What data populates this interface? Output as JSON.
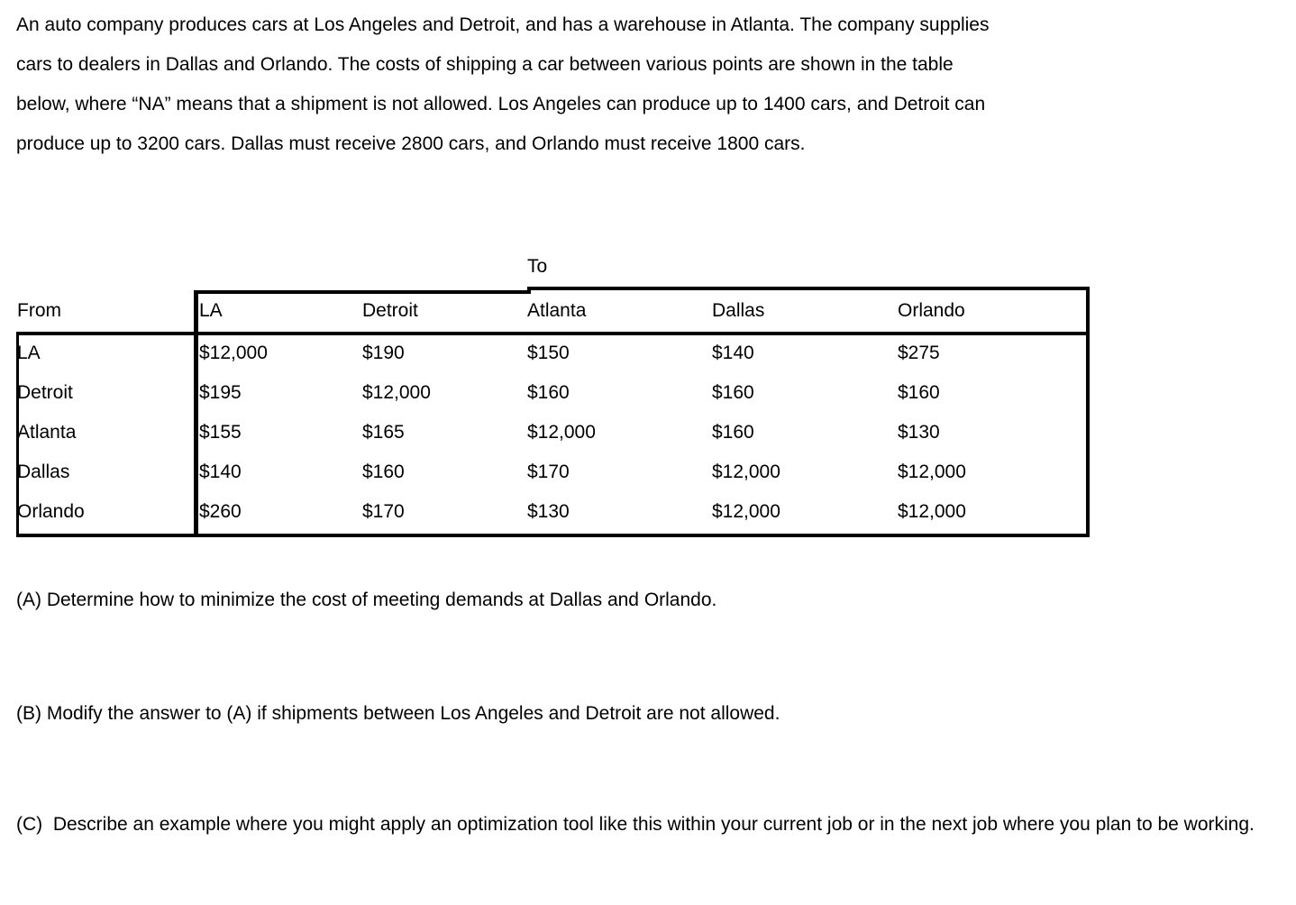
{
  "intro": {
    "lines": [
      "An auto company produces cars at Los Angeles and Detroit, and has a warehouse in Atlanta. The company supplies",
      "cars to dealers in Dallas and Orlando. The costs of shipping a car between various points are shown in the table",
      "below, where “NA” means that a shipment is not allowed. Los Angeles can produce up to 1400 cars, and Detroit can",
      "produce up to 3200 cars. Dallas must receive 2800 cars, and Orlando must receive 1800 cars."
    ]
  },
  "table": {
    "to_label": "To",
    "from_label": "From",
    "columns": [
      "LA",
      "Detroit",
      "Atlanta",
      "Dallas",
      "Orlando"
    ],
    "rows": [
      {
        "from": "LA",
        "cells": [
          "$12,000",
          "$190",
          "$150",
          "$140",
          "$275"
        ]
      },
      {
        "from": "Detroit",
        "cells": [
          "$195",
          "$12,000",
          "$160",
          "$160",
          "$160"
        ]
      },
      {
        "from": "Atlanta",
        "cells": [
          "$155",
          "$165",
          "$12,000",
          "$160",
          "$130"
        ]
      },
      {
        "from": "Dallas",
        "cells": [
          "$140",
          "$160",
          "$170",
          "$12,000",
          "$12,000"
        ]
      },
      {
        "from": "Orlando",
        "cells": [
          "$260",
          "$170",
          "$130",
          "$12,000",
          "$12,000"
        ]
      }
    ]
  },
  "questions": {
    "a": "(A) Determine how to minimize the cost of meeting demands at Dallas and Orlando.",
    "b": "(B) Modify the answer to (A) if shipments between Los Angeles and Detroit are not allowed.",
    "c": "(C)  Describe an example where you might apply an optimization tool like this within your current job or in the next job where you plan to be working."
  },
  "colors": {
    "text": "#000000",
    "background": "#ffffff",
    "table_rule": "#000000"
  }
}
